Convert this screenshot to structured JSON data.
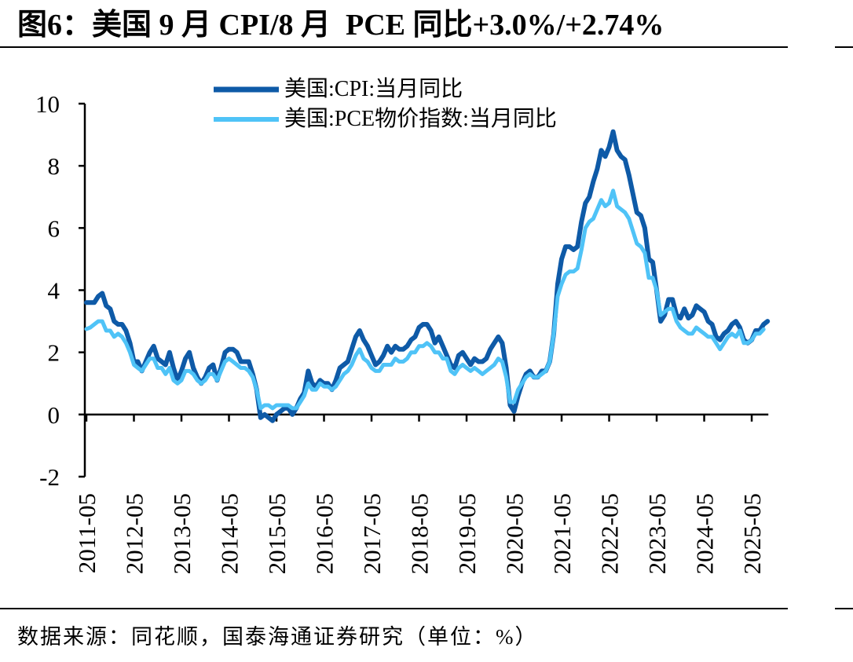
{
  "chart_data": {
    "type": "line",
    "title": "图6：美国 9 月 CPI/8 月  PCE 同比+3.0%/+2.74%",
    "ylim": [
      -2,
      10
    ],
    "y_ticks": [
      -2,
      0,
      2,
      4,
      6,
      8,
      10
    ],
    "x_tick_labels": [
      "2011-05",
      "2012-05",
      "2013-05",
      "2014-05",
      "2015-05",
      "2016-05",
      "2017-05",
      "2018-05",
      "2019-05",
      "2020-05",
      "2021-05",
      "2022-05",
      "2023-05",
      "2024-05",
      "2025-05"
    ],
    "grid": false,
    "legend_position": "top",
    "x": [
      "2011-05",
      "2011-06",
      "2011-07",
      "2011-08",
      "2011-09",
      "2011-10",
      "2011-11",
      "2011-12",
      "2012-01",
      "2012-02",
      "2012-03",
      "2012-04",
      "2012-05",
      "2012-06",
      "2012-07",
      "2012-08",
      "2012-09",
      "2012-10",
      "2012-11",
      "2012-12",
      "2013-01",
      "2013-02",
      "2013-03",
      "2013-04",
      "2013-05",
      "2013-06",
      "2013-07",
      "2013-08",
      "2013-09",
      "2013-10",
      "2013-11",
      "2013-12",
      "2014-01",
      "2014-02",
      "2014-03",
      "2014-04",
      "2014-05",
      "2014-06",
      "2014-07",
      "2014-08",
      "2014-09",
      "2014-10",
      "2014-11",
      "2014-12",
      "2015-01",
      "2015-02",
      "2015-03",
      "2015-04",
      "2015-05",
      "2015-06",
      "2015-07",
      "2015-08",
      "2015-09",
      "2015-10",
      "2015-11",
      "2015-12",
      "2016-01",
      "2016-02",
      "2016-03",
      "2016-04",
      "2016-05",
      "2016-06",
      "2016-07",
      "2016-08",
      "2016-09",
      "2016-10",
      "2016-11",
      "2016-12",
      "2017-01",
      "2017-02",
      "2017-03",
      "2017-04",
      "2017-05",
      "2017-06",
      "2017-07",
      "2017-08",
      "2017-09",
      "2017-10",
      "2017-11",
      "2017-12",
      "2018-01",
      "2018-02",
      "2018-03",
      "2018-04",
      "2018-05",
      "2018-06",
      "2018-07",
      "2018-08",
      "2018-09",
      "2018-10",
      "2018-11",
      "2018-12",
      "2019-01",
      "2019-02",
      "2019-03",
      "2019-04",
      "2019-05",
      "2019-06",
      "2019-07",
      "2019-08",
      "2019-09",
      "2019-10",
      "2019-11",
      "2019-12",
      "2020-01",
      "2020-02",
      "2020-03",
      "2020-04",
      "2020-05",
      "2020-06",
      "2020-07",
      "2020-08",
      "2020-09",
      "2020-10",
      "2020-11",
      "2020-12",
      "2021-01",
      "2021-02",
      "2021-03",
      "2021-04",
      "2021-05",
      "2021-06",
      "2021-07",
      "2021-08",
      "2021-09",
      "2021-10",
      "2021-11",
      "2021-12",
      "2022-01",
      "2022-02",
      "2022-03",
      "2022-04",
      "2022-05",
      "2022-06",
      "2022-07",
      "2022-08",
      "2022-09",
      "2022-10",
      "2022-11",
      "2022-12",
      "2023-01",
      "2023-02",
      "2023-03",
      "2023-04",
      "2023-05",
      "2023-06",
      "2023-07",
      "2023-08",
      "2023-09",
      "2023-10",
      "2023-11",
      "2023-12",
      "2024-01",
      "2024-02",
      "2024-03",
      "2024-04",
      "2024-05",
      "2024-06",
      "2024-07",
      "2024-08",
      "2024-09",
      "2024-10",
      "2024-11",
      "2024-12",
      "2025-01",
      "2025-02",
      "2025-03",
      "2025-04",
      "2025-05",
      "2025-06",
      "2025-07",
      "2025-08",
      "2025-09"
    ],
    "series": [
      {
        "name": "美国:CPI:当月同比",
        "color": "#0E5AA7",
        "values": [
          3.6,
          3.6,
          3.6,
          3.8,
          3.9,
          3.5,
          3.4,
          3.0,
          2.9,
          2.9,
          2.7,
          2.3,
          1.7,
          1.7,
          1.4,
          1.7,
          2.0,
          2.2,
          1.8,
          1.7,
          1.6,
          2.0,
          1.5,
          1.1,
          1.4,
          1.8,
          2.0,
          1.5,
          1.2,
          1.0,
          1.2,
          1.5,
          1.6,
          1.1,
          1.5,
          2.0,
          2.1,
          2.1,
          2.0,
          1.7,
          1.7,
          1.7,
          1.3,
          0.8,
          -0.1,
          0.0,
          -0.1,
          -0.2,
          0.0,
          0.1,
          0.2,
          0.2,
          0.0,
          0.2,
          0.5,
          0.7,
          1.4,
          1.0,
          0.9,
          1.1,
          1.0,
          1.0,
          0.8,
          1.1,
          1.5,
          1.6,
          1.7,
          2.1,
          2.5,
          2.7,
          2.4,
          2.2,
          1.9,
          1.6,
          1.7,
          1.9,
          2.2,
          2.0,
          2.2,
          2.1,
          2.1,
          2.2,
          2.4,
          2.5,
          2.8,
          2.9,
          2.9,
          2.7,
          2.3,
          2.5,
          2.2,
          1.9,
          1.6,
          1.5,
          1.9,
          2.0,
          1.8,
          1.6,
          1.8,
          1.7,
          1.7,
          1.8,
          2.1,
          2.3,
          2.5,
          2.3,
          1.5,
          0.3,
          0.1,
          0.6,
          1.0,
          1.3,
          1.4,
          1.2,
          1.2,
          1.4,
          1.4,
          1.7,
          2.6,
          4.2,
          5.0,
          5.4,
          5.4,
          5.3,
          5.4,
          6.2,
          6.8,
          7.0,
          7.5,
          7.9,
          8.5,
          8.3,
          8.6,
          9.1,
          8.5,
          8.3,
          8.2,
          7.7,
          7.1,
          6.5,
          6.4,
          6.0,
          5.0,
          4.9,
          4.0,
          3.0,
          3.2,
          3.7,
          3.7,
          3.2,
          3.1,
          3.4,
          3.1,
          3.2,
          3.5,
          3.4,
          3.3,
          3.0,
          2.9,
          2.5,
          2.4,
          2.6,
          2.7,
          2.9,
          3.0,
          2.8,
          2.4,
          2.3,
          2.4,
          2.7,
          2.7,
          2.9,
          3.0
        ]
      },
      {
        "name": "美国:PCE物价指数:当月同比",
        "color": "#4FC3F7",
        "values": [
          2.75,
          2.8,
          2.9,
          3.0,
          3.0,
          2.7,
          2.7,
          2.5,
          2.6,
          2.5,
          2.3,
          2.0,
          1.6,
          1.5,
          1.4,
          1.6,
          1.8,
          1.8,
          1.5,
          1.5,
          1.3,
          1.5,
          1.1,
          1.0,
          1.1,
          1.4,
          1.4,
          1.3,
          1.1,
          1.0,
          1.1,
          1.3,
          1.3,
          1.1,
          1.4,
          1.7,
          1.8,
          1.7,
          1.6,
          1.5,
          1.5,
          1.4,
          1.2,
          0.8,
          0.2,
          0.3,
          0.3,
          0.2,
          0.3,
          0.3,
          0.3,
          0.3,
          0.2,
          0.2,
          0.4,
          0.6,
          1.0,
          0.8,
          0.8,
          1.0,
          0.9,
          0.9,
          0.8,
          0.9,
          1.1,
          1.3,
          1.4,
          1.6,
          1.9,
          2.1,
          1.8,
          1.7,
          1.5,
          1.4,
          1.4,
          1.6,
          1.6,
          1.6,
          1.8,
          1.7,
          1.7,
          1.8,
          2.0,
          2.0,
          2.2,
          2.2,
          2.3,
          2.2,
          2.0,
          2.0,
          1.8,
          1.8,
          1.4,
          1.3,
          1.5,
          1.6,
          1.5,
          1.4,
          1.5,
          1.4,
          1.3,
          1.4,
          1.5,
          1.6,
          1.8,
          1.7,
          1.2,
          0.4,
          0.4,
          0.8,
          1.0,
          1.2,
          1.3,
          1.2,
          1.2,
          1.3,
          1.4,
          1.7,
          2.6,
          3.8,
          4.2,
          4.5,
          4.6,
          4.6,
          4.7,
          5.3,
          6.0,
          6.2,
          6.3,
          6.6,
          6.9,
          6.7,
          6.8,
          7.2,
          6.7,
          6.6,
          6.5,
          6.3,
          5.9,
          5.5,
          5.4,
          5.2,
          4.4,
          4.4,
          4.0,
          3.2,
          3.3,
          3.4,
          3.4,
          3.0,
          2.8,
          2.7,
          2.6,
          2.6,
          2.8,
          2.7,
          2.6,
          2.5,
          2.5,
          2.3,
          2.1,
          2.3,
          2.5,
          2.6,
          2.5,
          2.7,
          2.3,
          2.3,
          2.4,
          2.6,
          2.6,
          2.74,
          null
        ]
      }
    ]
  },
  "source_note": "数据来源：同花顺，国泰海通证券研究（单位：%）"
}
